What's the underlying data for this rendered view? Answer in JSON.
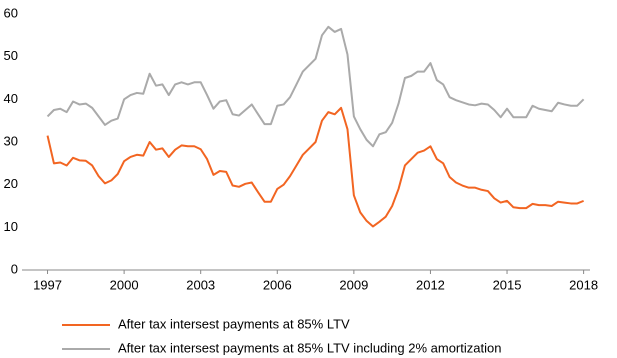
{
  "chart_data": {
    "type": "line",
    "x": [
      1997,
      1997.25,
      1997.5,
      1997.75,
      1998,
      1998.25,
      1998.5,
      1998.75,
      1999,
      1999.25,
      1999.5,
      1999.75,
      2000,
      2000.25,
      2000.5,
      2000.75,
      2001,
      2001.25,
      2001.5,
      2001.75,
      2002,
      2002.25,
      2002.5,
      2002.75,
      2003,
      2003.25,
      2003.5,
      2003.75,
      2004,
      2004.25,
      2004.5,
      2004.75,
      2005,
      2005.25,
      2005.5,
      2005.75,
      2006,
      2006.25,
      2006.5,
      2006.75,
      2007,
      2007.25,
      2007.5,
      2007.75,
      2008,
      2008.25,
      2008.5,
      2008.75,
      2009,
      2009.25,
      2009.5,
      2009.75,
      2010,
      2010.25,
      2010.5,
      2010.75,
      2011,
      2011.25,
      2011.5,
      2011.75,
      2012,
      2012.25,
      2012.5,
      2012.75,
      2013,
      2013.25,
      2013.5,
      2013.75,
      2014,
      2014.25,
      2014.5,
      2014.75,
      2015,
      2015.25,
      2015.5,
      2015.75,
      2016,
      2016.25,
      2016.5,
      2016.75,
      2017,
      2017.25,
      2017.5,
      2017.75,
      2018
    ],
    "series": [
      {
        "name": "After tax intersest payments at 85% LTV",
        "color": "#f26522",
        "values": [
          31.5,
          25,
          25.2,
          24.5,
          26.3,
          25.7,
          25.6,
          24.5,
          22,
          20.3,
          21,
          22.5,
          25.5,
          26.5,
          27,
          26.8,
          30,
          28.2,
          28.5,
          26.5,
          28.2,
          29.2,
          29,
          29,
          28.3,
          26,
          22.3,
          23.2,
          23,
          19.8,
          19.5,
          20.2,
          20.5,
          18.2,
          16,
          16,
          19,
          20,
          22,
          24.5,
          27,
          28.5,
          30,
          35,
          37,
          36.5,
          38,
          33,
          17.5,
          13.5,
          11.5,
          10.2,
          11.3,
          12.5,
          15,
          19,
          24.5,
          26,
          27.5,
          28,
          29,
          26,
          25,
          21.8,
          20.5,
          19.8,
          19.3,
          19.3,
          18.8,
          18.5,
          16.8,
          15.8,
          16.2,
          14.7,
          14.5,
          14.5,
          15.5,
          15.2,
          15.2,
          15,
          16,
          15.8,
          15.6,
          15.6,
          16.2
        ]
      },
      {
        "name": "After tax intersest payments at 85% LTV including 2% amortization",
        "color": "#aaaaaa",
        "values": [
          36,
          37.5,
          37.8,
          37,
          39.5,
          38.8,
          39,
          38,
          36,
          34,
          35,
          35.5,
          40,
          41,
          41.5,
          41.3,
          46,
          43.2,
          43.5,
          41,
          43.5,
          44,
          43.5,
          44,
          44,
          41,
          37.8,
          39.5,
          39.8,
          36.5,
          36.2,
          37.5,
          38.8,
          36.5,
          34.2,
          34.2,
          38.5,
          38.8,
          40.5,
          43.5,
          46.5,
          48,
          49.5,
          55,
          57,
          55.8,
          56.5,
          50.5,
          36,
          33,
          30.5,
          29,
          31.8,
          32.3,
          34.5,
          39,
          45,
          45.5,
          46.5,
          46.5,
          48.5,
          44.5,
          43.5,
          40.5,
          39.8,
          39.3,
          38.8,
          38.6,
          39,
          38.8,
          37.5,
          35.8,
          37.8,
          35.8,
          35.8,
          35.8,
          38.5,
          37.8,
          37.5,
          37.2,
          39.2,
          38.8,
          38.5,
          38.5,
          40
        ]
      }
    ],
    "xlim": [
      1996,
      2018.25
    ],
    "xticks": [
      1997,
      2000,
      2003,
      2006,
      2009,
      2012,
      2015,
      2018
    ],
    "ylim": [
      0,
      60
    ],
    "yticks": [
      0,
      10,
      20,
      30,
      40,
      50,
      60
    ],
    "grid": false,
    "legend": "bottom"
  }
}
